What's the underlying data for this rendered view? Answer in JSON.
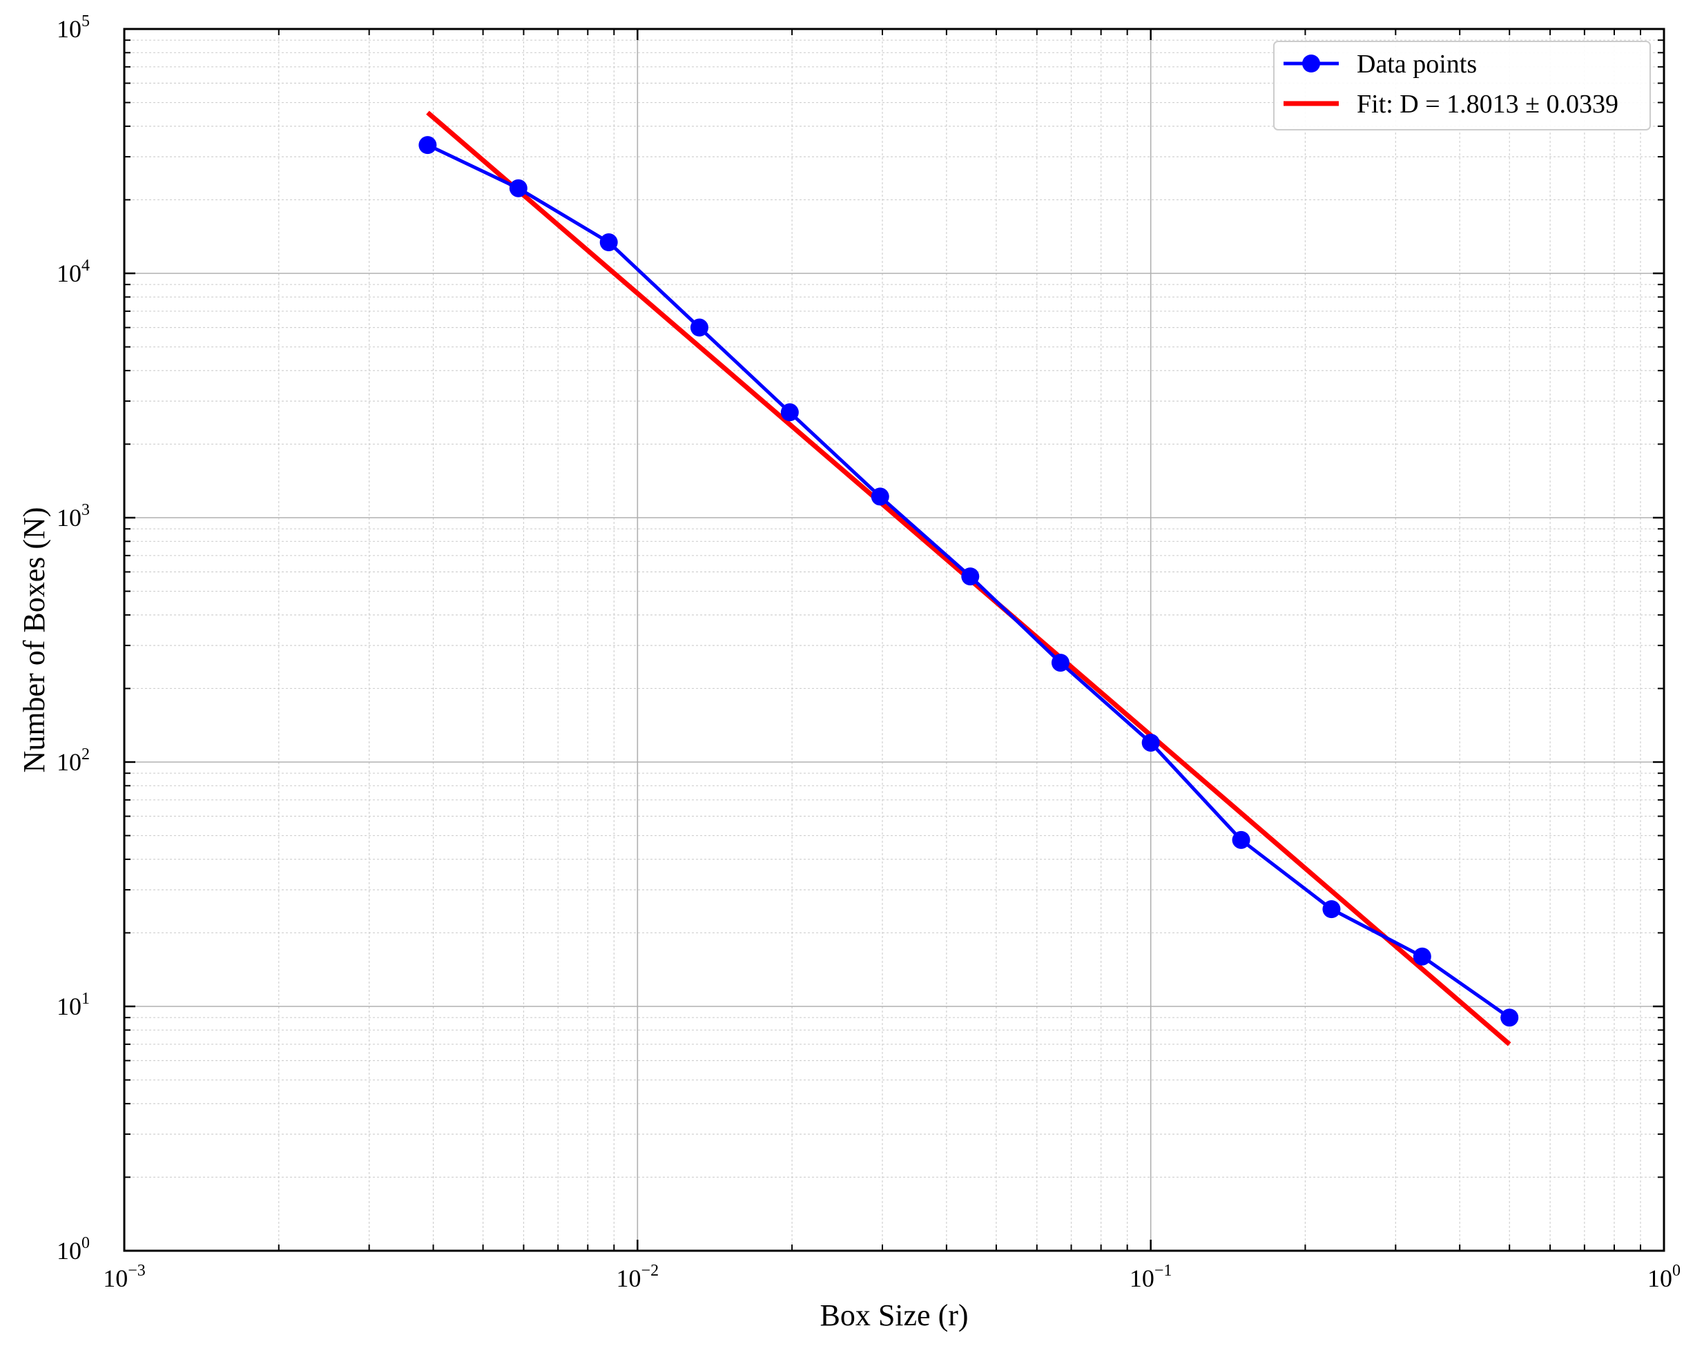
{
  "chart_data": {
    "type": "line",
    "title": "",
    "xlabel": "Box Size (r)",
    "ylabel": "Number of Boxes (N)",
    "xscale": "log",
    "yscale": "log",
    "xlim": [
      0.001,
      1
    ],
    "ylim": [
      1,
      100000
    ],
    "grid": true,
    "legend_position": "top-right",
    "x_ticks": [
      {
        "value": 0.001,
        "base": "10",
        "exp": "−3"
      },
      {
        "value": 0.01,
        "base": "10",
        "exp": "−2"
      },
      {
        "value": 0.1,
        "base": "10",
        "exp": "−1"
      },
      {
        "value": 1,
        "base": "10",
        "exp": "0"
      }
    ],
    "y_ticks": [
      {
        "value": 1,
        "base": "10",
        "exp": "0"
      },
      {
        "value": 10,
        "base": "10",
        "exp": "1"
      },
      {
        "value": 100,
        "base": "10",
        "exp": "2"
      },
      {
        "value": 1000,
        "base": "10",
        "exp": "3"
      },
      {
        "value": 10000,
        "base": "10",
        "exp": "4"
      },
      {
        "value": 100000,
        "base": "10",
        "exp": "5"
      }
    ],
    "series": [
      {
        "name": "Data points",
        "kind": "line-marker",
        "color": "#0000ff",
        "x": [
          0.0039,
          0.00586,
          0.00879,
          0.0132,
          0.0198,
          0.0297,
          0.0445,
          0.0667,
          0.1,
          0.15,
          0.225,
          0.338,
          0.5
        ],
        "y": [
          33500,
          22300,
          13400,
          6000,
          2700,
          1220,
          575,
          255,
          120,
          48,
          25,
          16,
          9
        ]
      },
      {
        "name": "Fit: D = 1.8013 ± 0.0339",
        "kind": "line",
        "color": "#ff0000",
        "x": [
          0.0039,
          0.5
        ],
        "y": [
          45500,
          7
        ]
      }
    ]
  }
}
